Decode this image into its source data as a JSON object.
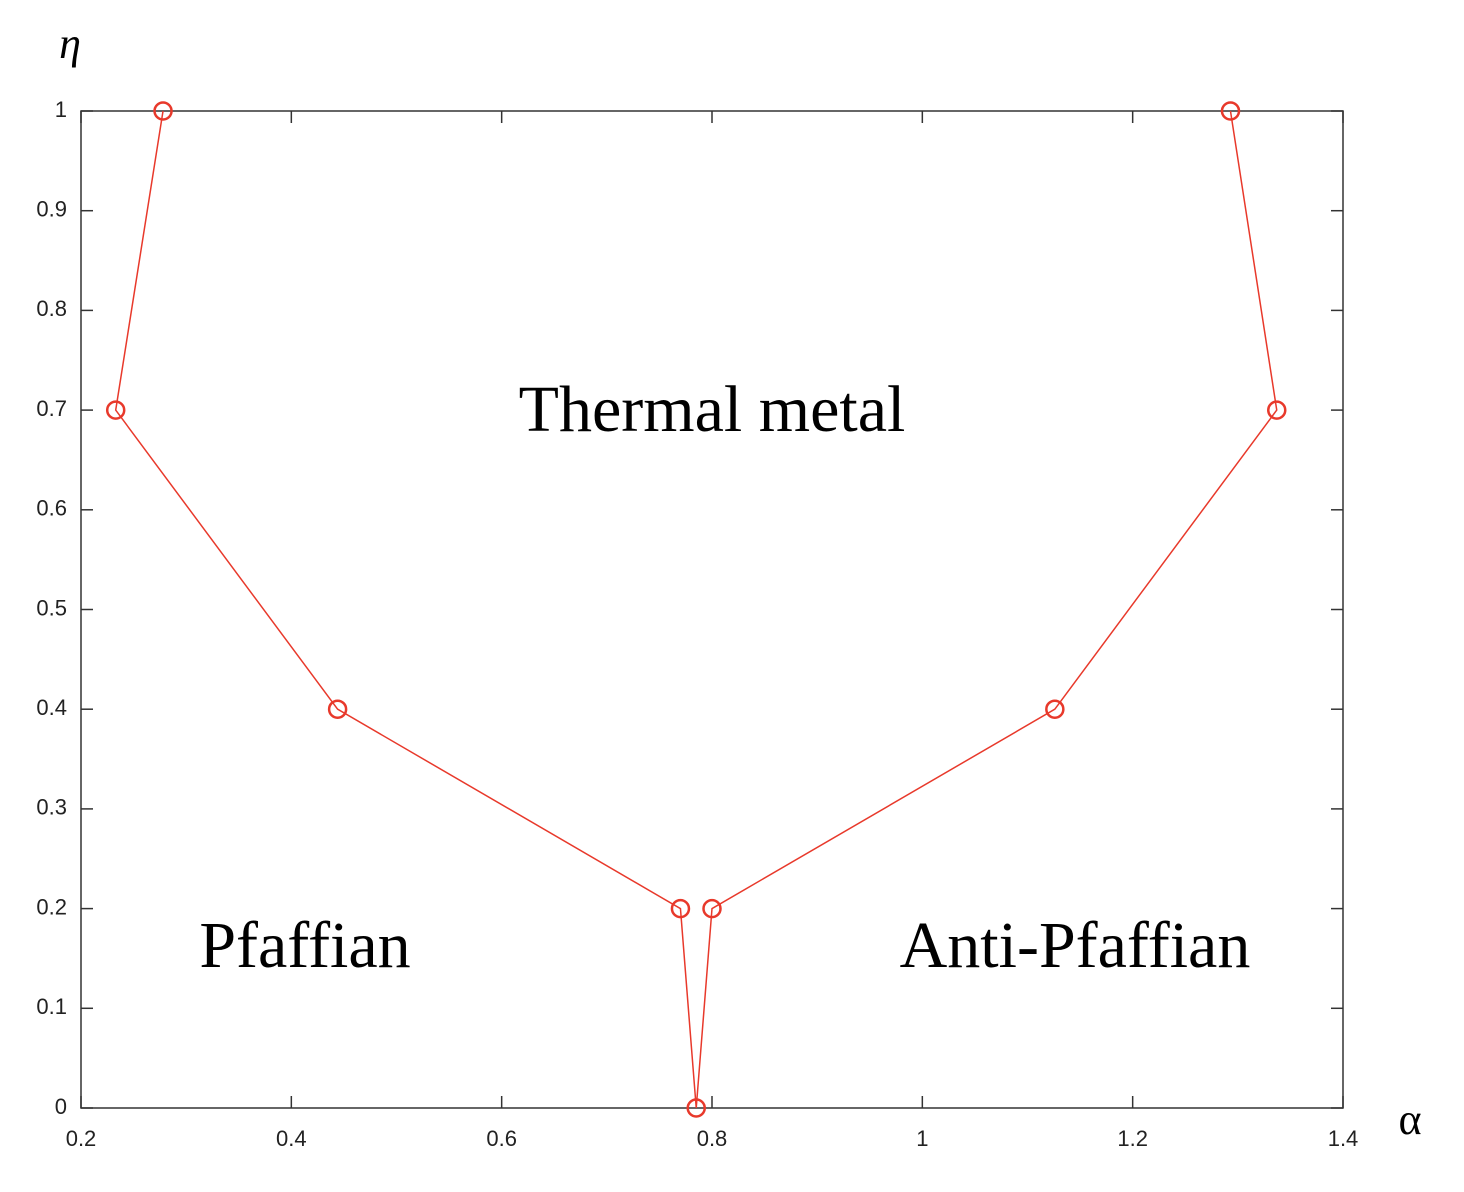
{
  "chart_data": {
    "type": "line",
    "xlabel": "α",
    "ylabel": "η",
    "x": [
      0.278,
      0.233,
      0.444,
      0.77,
      0.785,
      0.8,
      1.126,
      1.337,
      1.293
    ],
    "values": [
      1,
      0.7,
      0.4,
      0.2,
      0,
      0.2,
      0.4,
      0.7,
      1
    ],
    "color": "#e8392b",
    "marker": "circle",
    "xlim": [
      0.2,
      1.4
    ],
    "xticks": [
      0.2,
      0.4,
      0.6,
      0.8,
      1,
      1.2,
      1.4
    ],
    "ylim": [
      0,
      1
    ],
    "yticks": [
      0,
      0.1,
      0.2,
      0.3,
      0.4,
      0.5,
      0.6,
      0.7,
      0.8,
      0.9,
      1
    ],
    "grid": false,
    "annotations": [
      "Thermal metal",
      "Pfaffian",
      "Anti-Pfaffian"
    ]
  }
}
